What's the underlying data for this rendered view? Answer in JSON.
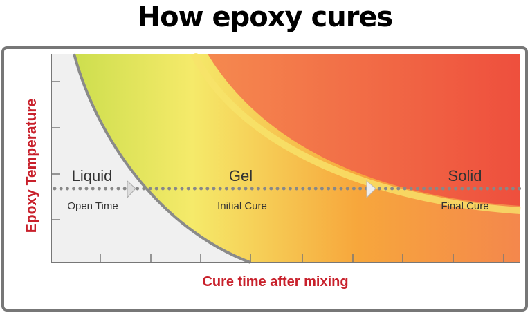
{
  "title": "How epoxy cures",
  "axes": {
    "y_label": "Epoxy Temperature",
    "x_label": "Cure time after mixing"
  },
  "phases": [
    {
      "name": "Liquid",
      "subtitle": "Open Time"
    },
    {
      "name": "Gel",
      "subtitle": "Initial Cure"
    },
    {
      "name": "Solid",
      "subtitle": "Final Cure"
    }
  ],
  "colors": {
    "axis_label": "#c8202b",
    "liquid": "#f0f0f0",
    "gel_start": "#c9de4a",
    "gel_mid": "#f6ea6a",
    "gel_end": "#f6a23a",
    "solid_start": "#f5874e",
    "solid_end": "#ee4e3c",
    "text": "#333333"
  }
}
